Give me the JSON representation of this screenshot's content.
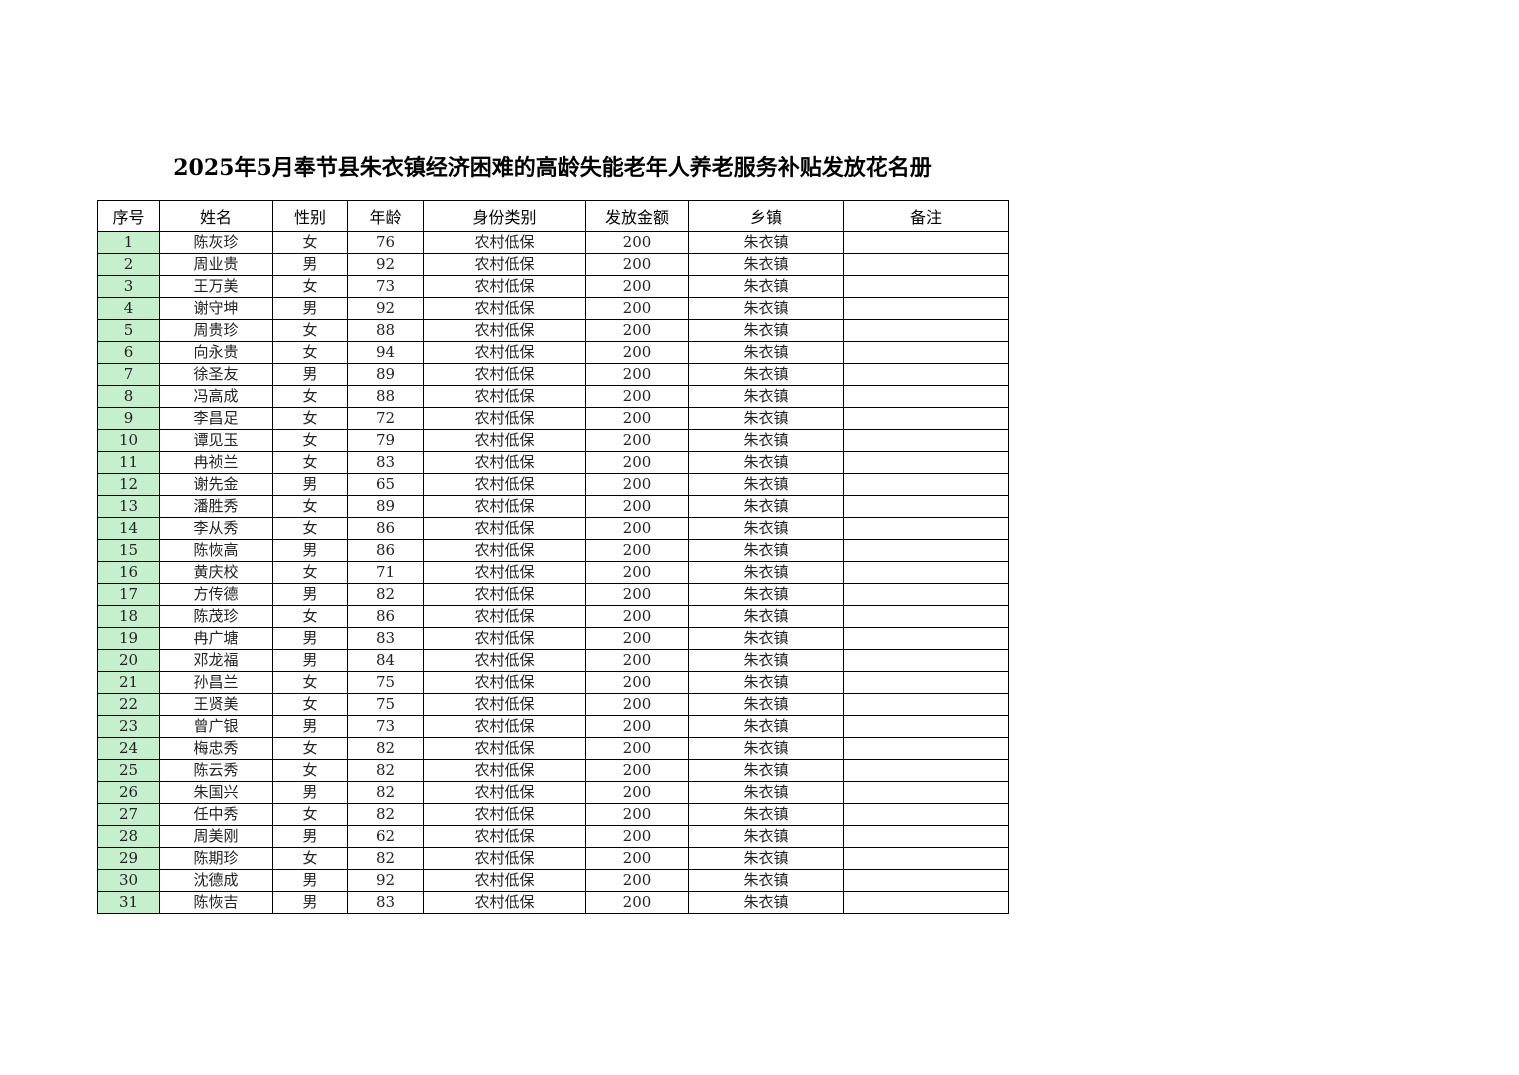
{
  "title": "2025年5月奉节县朱衣镇经济困难的高龄失能老年人养老服务补贴发放花名册",
  "table": {
    "headers": [
      "序号",
      "姓名",
      "性别",
      "年龄",
      "身份类别",
      "发放金额",
      "乡镇",
      "备注"
    ],
    "index_fill_color": "#c6efce",
    "rows": [
      [
        "1",
        "陈灰珍",
        "女",
        "76",
        "农村低保",
        "200",
        "朱衣镇",
        ""
      ],
      [
        "2",
        "周业贵",
        "男",
        "92",
        "农村低保",
        "200",
        "朱衣镇",
        ""
      ],
      [
        "3",
        "王万美",
        "女",
        "73",
        "农村低保",
        "200",
        "朱衣镇",
        ""
      ],
      [
        "4",
        "谢守坤",
        "男",
        "92",
        "农村低保",
        "200",
        "朱衣镇",
        ""
      ],
      [
        "5",
        "周贵珍",
        "女",
        "88",
        "农村低保",
        "200",
        "朱衣镇",
        ""
      ],
      [
        "6",
        "向永贵",
        "女",
        "94",
        "农村低保",
        "200",
        "朱衣镇",
        ""
      ],
      [
        "7",
        "徐圣友",
        "男",
        "89",
        "农村低保",
        "200",
        "朱衣镇",
        ""
      ],
      [
        "8",
        "冯高成",
        "女",
        "88",
        "农村低保",
        "200",
        "朱衣镇",
        ""
      ],
      [
        "9",
        "李昌足",
        "女",
        "72",
        "农村低保",
        "200",
        "朱衣镇",
        ""
      ],
      [
        "10",
        "谭见玉",
        "女",
        "79",
        "农村低保",
        "200",
        "朱衣镇",
        ""
      ],
      [
        "11",
        "冉祯兰",
        "女",
        "83",
        "农村低保",
        "200",
        "朱衣镇",
        ""
      ],
      [
        "12",
        "谢先金",
        "男",
        "65",
        "农村低保",
        "200",
        "朱衣镇",
        ""
      ],
      [
        "13",
        "潘胜秀",
        "女",
        "89",
        "农村低保",
        "200",
        "朱衣镇",
        ""
      ],
      [
        "14",
        "李从秀",
        "女",
        "86",
        "农村低保",
        "200",
        "朱衣镇",
        ""
      ],
      [
        "15",
        "陈恢高",
        "男",
        "86",
        "农村低保",
        "200",
        "朱衣镇",
        ""
      ],
      [
        "16",
        "黄庆校",
        "女",
        "71",
        "农村低保",
        "200",
        "朱衣镇",
        ""
      ],
      [
        "17",
        "方传德",
        "男",
        "82",
        "农村低保",
        "200",
        "朱衣镇",
        ""
      ],
      [
        "18",
        "陈茂珍",
        "女",
        "86",
        "农村低保",
        "200",
        "朱衣镇",
        ""
      ],
      [
        "19",
        "冉广塘",
        "男",
        "83",
        "农村低保",
        "200",
        "朱衣镇",
        ""
      ],
      [
        "20",
        "邓龙福",
        "男",
        "84",
        "农村低保",
        "200",
        "朱衣镇",
        ""
      ],
      [
        "21",
        "孙昌兰",
        "女",
        "75",
        "农村低保",
        "200",
        "朱衣镇",
        ""
      ],
      [
        "22",
        "王贤美",
        "女",
        "75",
        "农村低保",
        "200",
        "朱衣镇",
        ""
      ],
      [
        "23",
        "曾广银",
        "男",
        "73",
        "农村低保",
        "200",
        "朱衣镇",
        ""
      ],
      [
        "24",
        "梅忠秀",
        "女",
        "82",
        "农村低保",
        "200",
        "朱衣镇",
        ""
      ],
      [
        "25",
        "陈云秀",
        "女",
        "82",
        "农村低保",
        "200",
        "朱衣镇",
        ""
      ],
      [
        "26",
        "朱国兴",
        "男",
        "82",
        "农村低保",
        "200",
        "朱衣镇",
        ""
      ],
      [
        "27",
        "任中秀",
        "女",
        "82",
        "农村低保",
        "200",
        "朱衣镇",
        ""
      ],
      [
        "28",
        "周美刚",
        "男",
        "62",
        "农村低保",
        "200",
        "朱衣镇",
        ""
      ],
      [
        "29",
        "陈期珍",
        "女",
        "82",
        "农村低保",
        "200",
        "朱衣镇",
        ""
      ],
      [
        "30",
        "沈德成",
        "男",
        "92",
        "农村低保",
        "200",
        "朱衣镇",
        ""
      ],
      [
        "31",
        "陈恢吉",
        "男",
        "83",
        "农村低保",
        "200",
        "朱衣镇",
        ""
      ]
    ]
  }
}
